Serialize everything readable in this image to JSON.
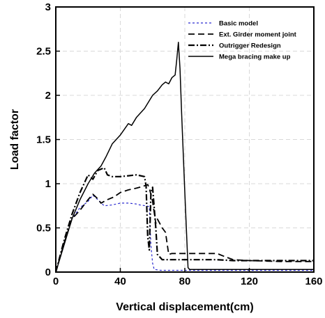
{
  "chart_data": {
    "type": "line",
    "xlabel": "Vertical displacement(cm)",
    "ylabel": "Load factor",
    "xlim": [
      0,
      160
    ],
    "ylim": [
      0,
      3
    ],
    "xticks": [
      0,
      40,
      80,
      120,
      160
    ],
    "yticks": [
      0,
      0.5,
      1,
      1.5,
      2,
      2.5,
      3
    ],
    "xtick_labels": [
      "0",
      "40",
      "80",
      "120",
      "160"
    ],
    "ytick_labels": [
      "0",
      "0.5",
      "1",
      "1.5",
      "2",
      "2.5",
      "3"
    ],
    "grid": true,
    "legend_position": "top-right",
    "series": [
      {
        "name": "Basic model",
        "color": "#2a2ad0",
        "style": "dashed-short",
        "points": [
          [
            0,
            0
          ],
          [
            5,
            0.3
          ],
          [
            10,
            0.6
          ],
          [
            15,
            0.73
          ],
          [
            20,
            0.8
          ],
          [
            23,
            0.87
          ],
          [
            26,
            0.82
          ],
          [
            30,
            0.75
          ],
          [
            35,
            0.76
          ],
          [
            40,
            0.78
          ],
          [
            45,
            0.78
          ],
          [
            50,
            0.77
          ],
          [
            52,
            0.76
          ],
          [
            56,
            0.75
          ],
          [
            58,
            0.74
          ],
          [
            59,
            0.3
          ],
          [
            60,
            0.1
          ],
          [
            61,
            0.03
          ],
          [
            65,
            0.02
          ],
          [
            80,
            0.02
          ],
          [
            120,
            0.02
          ],
          [
            160,
            0.02
          ]
        ]
      },
      {
        "name": "Ext. Girder moment joint",
        "color": "#000000",
        "style": "dashed-long",
        "points": [
          [
            0,
            0
          ],
          [
            5,
            0.32
          ],
          [
            10,
            0.6
          ],
          [
            15,
            0.7
          ],
          [
            20,
            0.82
          ],
          [
            23,
            0.88
          ],
          [
            26,
            0.83
          ],
          [
            28,
            0.78
          ],
          [
            32,
            0.82
          ],
          [
            36,
            0.85
          ],
          [
            40,
            0.9
          ],
          [
            45,
            0.93
          ],
          [
            50,
            0.95
          ],
          [
            54,
            0.97
          ],
          [
            57,
            0.99
          ],
          [
            58,
            0.95
          ],
          [
            60,
            0.8
          ],
          [
            62,
            0.55
          ],
          [
            63,
            0.6
          ],
          [
            66,
            0.5
          ],
          [
            68,
            0.45
          ],
          [
            70,
            0.2
          ],
          [
            72,
            0.21
          ],
          [
            100,
            0.21
          ],
          [
            104,
            0.18
          ],
          [
            110,
            0.14
          ],
          [
            120,
            0.13
          ],
          [
            140,
            0.12
          ],
          [
            160,
            0.12
          ]
        ]
      },
      {
        "name": "Outrigger Redesign",
        "color": "#000000",
        "style": "dash-dot",
        "points": [
          [
            0,
            0
          ],
          [
            5,
            0.35
          ],
          [
            10,
            0.65
          ],
          [
            15,
            0.9
          ],
          [
            20,
            1.1
          ],
          [
            23,
            1.05
          ],
          [
            26,
            1.15
          ],
          [
            30,
            1.18
          ],
          [
            32,
            1.1
          ],
          [
            35,
            1.08
          ],
          [
            40,
            1.08
          ],
          [
            45,
            1.09
          ],
          [
            50,
            1.1
          ],
          [
            55,
            1.08
          ],
          [
            56,
            0.97
          ],
          [
            57,
            0.4
          ],
          [
            58,
            0.25
          ],
          [
            59,
            0.9
          ],
          [
            60,
            0.96
          ],
          [
            62,
            0.5
          ],
          [
            63,
            0.2
          ],
          [
            66,
            0.14
          ],
          [
            80,
            0.14
          ],
          [
            100,
            0.14
          ],
          [
            110,
            0.13
          ],
          [
            120,
            0.13
          ],
          [
            140,
            0.13
          ],
          [
            160,
            0.13
          ]
        ]
      },
      {
        "name": "Mega bracing make up",
        "color": "#000000",
        "style": "solid",
        "points": [
          [
            0,
            0
          ],
          [
            5,
            0.3
          ],
          [
            10,
            0.6
          ],
          [
            15,
            0.82
          ],
          [
            20,
            1.0
          ],
          [
            24,
            1.12
          ],
          [
            28,
            1.2
          ],
          [
            31,
            1.3
          ],
          [
            35,
            1.45
          ],
          [
            40,
            1.55
          ],
          [
            45,
            1.68
          ],
          [
            47,
            1.66
          ],
          [
            50,
            1.75
          ],
          [
            55,
            1.85
          ],
          [
            60,
            2.0
          ],
          [
            63,
            2.05
          ],
          [
            66,
            2.12
          ],
          [
            68,
            2.15
          ],
          [
            70,
            2.13
          ],
          [
            72,
            2.2
          ],
          [
            74,
            2.23
          ],
          [
            75,
            2.4
          ],
          [
            76,
            2.6
          ],
          [
            77,
            2.3
          ],
          [
            78,
            1.8
          ],
          [
            80,
            0.9
          ],
          [
            82,
            0.05
          ],
          [
            83,
            0.03
          ],
          [
            100,
            0.03
          ],
          [
            120,
            0.03
          ],
          [
            160,
            0.03
          ]
        ]
      }
    ]
  }
}
